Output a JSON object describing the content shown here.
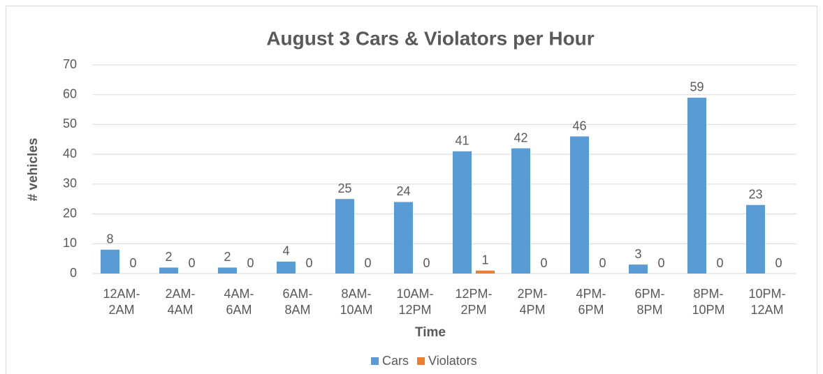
{
  "chart_data": {
    "type": "bar",
    "title": "August 3 Cars & Violators per Hour",
    "x_label": "Time",
    "y_label": "# vehicles",
    "categories": [
      "12AM-2AM",
      "2AM-4AM",
      "4AM-6AM",
      "6AM-8AM",
      "8AM-10AM",
      "10AM-12PM",
      "12PM-2PM",
      "2PM-4PM",
      "4PM-6PM",
      "6PM-8PM",
      "8PM-10PM",
      "10PM-12AM"
    ],
    "series": [
      {
        "name": "Cars",
        "color": "#5b9bd5",
        "values": [
          8,
          2,
          2,
          4,
          25,
          24,
          41,
          42,
          46,
          3,
          59,
          23
        ]
      },
      {
        "name": "Violators",
        "color": "#ed7d31",
        "values": [
          0,
          0,
          0,
          0,
          0,
          0,
          1,
          0,
          0,
          0,
          0,
          0
        ]
      }
    ],
    "ylim": [
      0,
      70
    ],
    "yticks": [
      0,
      10,
      20,
      30,
      40,
      50,
      60,
      70
    ],
    "grid": true,
    "legend": "bottom"
  }
}
